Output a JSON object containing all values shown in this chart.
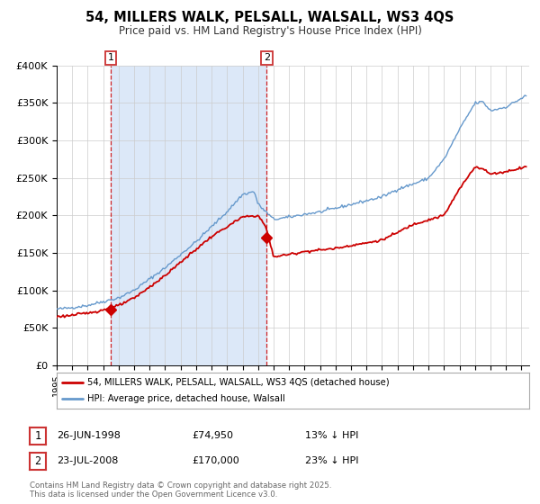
{
  "title": "54, MILLERS WALK, PELSALL, WALSALL, WS3 4QS",
  "subtitle": "Price paid vs. HM Land Registry's House Price Index (HPI)",
  "legend_red": "54, MILLERS WALK, PELSALL, WALSALL, WS3 4QS (detached house)",
  "legend_blue": "HPI: Average price, detached house, Walsall",
  "sale1_date": "26-JUN-1998",
  "sale1_price": 74950,
  "sale1_label": "13% ↓ HPI",
  "sale2_date": "23-JUL-2008",
  "sale2_price": 170000,
  "sale2_label": "23% ↓ HPI",
  "sale1_year": 1998.49,
  "sale2_year": 2008.55,
  "copyright": "Contains HM Land Registry data © Crown copyright and database right 2025.\nThis data is licensed under the Open Government Licence v3.0.",
  "plot_bg": "#ffffff",
  "shaded_region_color": "#dce8f8",
  "red_color": "#cc0000",
  "blue_color": "#6699cc",
  "ylim": [
    0,
    400000
  ],
  "xlim_start": 1995,
  "xlim_end": 2025.5,
  "hpi_key_years": [
    1995,
    1996,
    1997,
    1998,
    1999,
    2000,
    2001,
    2002,
    2003,
    2004,
    2005,
    2006,
    2007,
    2007.75,
    2008,
    2009,
    2010,
    2011,
    2012,
    2013,
    2014,
    2015,
    2016,
    2017,
    2018,
    2019,
    2020,
    2021,
    2022,
    2022.5,
    2023,
    2024,
    2025.3
  ],
  "hpi_key_vals": [
    75000,
    77000,
    80000,
    85000,
    90000,
    100000,
    115000,
    130000,
    148000,
    165000,
    185000,
    205000,
    228000,
    232000,
    215000,
    195000,
    198000,
    202000,
    205000,
    210000,
    215000,
    220000,
    225000,
    235000,
    242000,
    250000,
    275000,
    315000,
    350000,
    352000,
    340000,
    345000,
    360000
  ],
  "red_key_years": [
    1995,
    1996,
    1997,
    1998,
    1999,
    2000,
    2001,
    2002,
    2003,
    2004,
    2005,
    2006,
    2007,
    2008.0,
    2008.5,
    2009,
    2010,
    2011,
    2012,
    2013,
    2014,
    2015,
    2016,
    2017,
    2018,
    2019,
    2020,
    2021,
    2022,
    2022.5,
    2023,
    2024,
    2025.3
  ],
  "red_key_vals": [
    65000,
    67000,
    70000,
    74000,
    80000,
    90000,
    105000,
    120000,
    138000,
    155000,
    172000,
    185000,
    198000,
    200000,
    185000,
    145000,
    148000,
    152000,
    154000,
    156000,
    160000,
    163000,
    167000,
    177000,
    188000,
    194000,
    200000,
    235000,
    265000,
    262000,
    255000,
    258000,
    265000
  ]
}
